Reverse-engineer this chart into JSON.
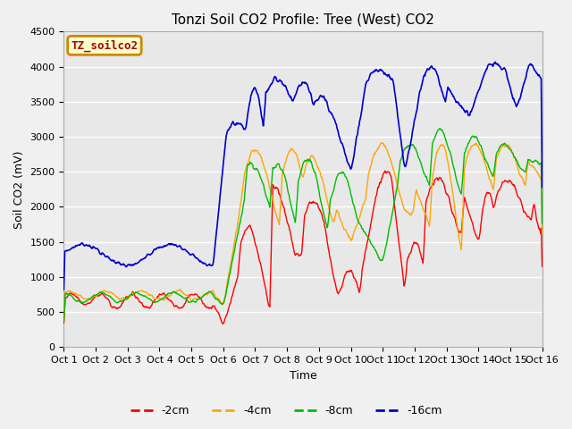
{
  "title": "Tonzi Soil CO2 Profile: Tree (West) CO2",
  "ylabel": "Soil CO2 (mV)",
  "xlabel": "Time",
  "x_tick_labels": [
    "Oct 1",
    "Oct 2",
    "Oct 3",
    "Oct 4",
    "Oct 5",
    "Oct 6",
    "Oct 7",
    "Oct 8",
    "Oct 9",
    "Oct 10",
    "Oct 11",
    "Oct 12",
    "Oct 13",
    "Oct 14",
    "Oct 15",
    "Oct 16"
  ],
  "ylim": [
    0,
    4500
  ],
  "series_labels": [
    "-2cm",
    "-4cm",
    "-8cm",
    "-16cm"
  ],
  "series_colors": [
    "#ff0000",
    "#ffa500",
    "#00bb00",
    "#0000cc"
  ],
  "plot_bg_color": "#e8e8e8",
  "grid_color": "#ffffff",
  "legend_box_facecolor": "#ffffcc",
  "legend_box_edgecolor": "#cc8800",
  "legend_text_color": "#aa0000",
  "title_fontsize": 11,
  "label_fontsize": 9,
  "tick_fontsize": 8
}
